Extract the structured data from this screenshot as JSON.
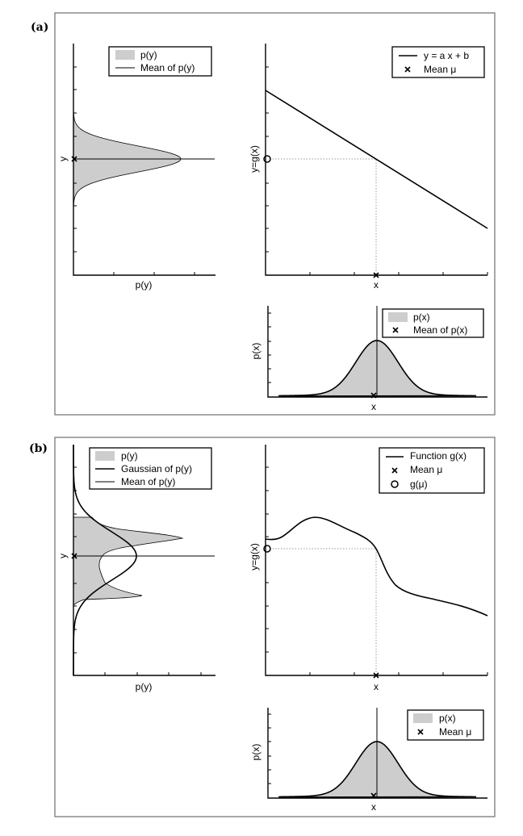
{
  "panel_a": {
    "label": "(a)",
    "py_plot": {
      "ylabel": "y",
      "xlabel": "p(y)",
      "legend": [
        "p(y)",
        "Mean of p(y)"
      ]
    },
    "g_plot": {
      "ylabel": "y=g(x)",
      "xlabel": "x",
      "legend": [
        "y = a x + b",
        "Mean μ"
      ]
    },
    "px_plot": {
      "ylabel": "p(x)",
      "xlabel": "x",
      "legend": [
        "p(x)",
        "Mean of p(x)"
      ]
    }
  },
  "panel_b": {
    "label": "(b)",
    "py_plot": {
      "ylabel": "y",
      "xlabel": "p(y)",
      "legend": [
        "p(y)",
        "Gaussian of p(y)",
        "Mean of p(y)"
      ]
    },
    "g_plot": {
      "ylabel": "y=g(x)",
      "xlabel": "x",
      "legend": [
        "Function g(x)",
        "Mean μ",
        "g(μ)"
      ]
    },
    "px_plot": {
      "ylabel": "p(x)",
      "xlabel": "x",
      "legend": [
        "p(x)",
        "Mean μ"
      ]
    }
  },
  "colors": {
    "fill": "#cdcdcd",
    "frame": "#7a7a7a"
  }
}
